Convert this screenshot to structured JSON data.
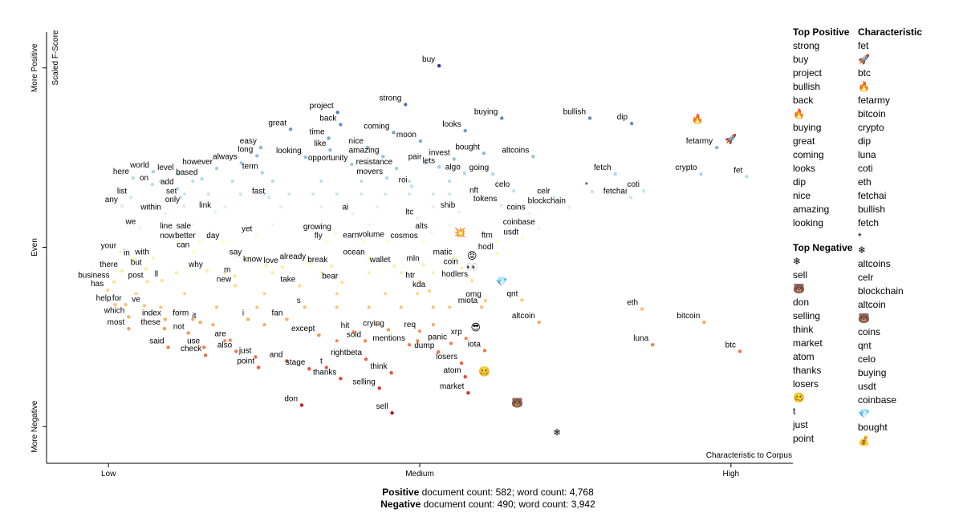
{
  "chart_data": {
    "type": "scatter",
    "ylabel": "Scaled F-Score",
    "xlabel": "Characteristic to Corpus",
    "xlim": [
      0,
      1
    ],
    "ylim": [
      -0.1,
      1.1
    ],
    "xticks": [
      {
        "value": 0.083,
        "label": "Low"
      },
      {
        "value": 0.5,
        "label": "Medium"
      },
      {
        "value": 0.917,
        "label": "High"
      }
    ],
    "yticks": [
      {
        "value": 1,
        "label": "More Positive"
      },
      {
        "value": 0.5,
        "label": "Even"
      },
      {
        "value": 0,
        "label": "More Negative"
      }
    ],
    "color_scale": [
      "#a50026",
      "#d73027",
      "#f46d43",
      "#fdae61",
      "#fee090",
      "#ffffbf",
      "#e0f3f8",
      "#abd9e9",
      "#74add1",
      "#4575b4",
      "#313695"
    ],
    "points": {
      "labels": [
        "buy",
        "strong",
        "project",
        "back",
        "great",
        "time",
        "coming",
        "moon",
        "looks",
        "buying",
        "bullish",
        "dip",
        "🔥",
        "fetarmy",
        "🚀",
        "easy",
        "long",
        "like",
        "nice",
        "amazing",
        "looking",
        "opportunity",
        "invest",
        "bought",
        "altcoins",
        "pair",
        "lets",
        "resistance",
        "term",
        "however",
        "always",
        "world",
        "level",
        "based",
        "here",
        "movers",
        "roi",
        "algo",
        "going",
        "on",
        "add",
        "celo",
        "fetch",
        "crypto",
        "fet",
        "coti",
        "fetchai",
        "*",
        "list",
        "set",
        "fast",
        "nft",
        "celr",
        "blockchain",
        "any",
        "only",
        "tokens",
        "link",
        "within",
        "ai",
        "ltc",
        "shib",
        "coins",
        "we",
        "coinbase",
        "line",
        "sale",
        "yet",
        "growing",
        "alts",
        "💥",
        "ftm",
        "usdt",
        "now",
        "better",
        "day",
        "fly",
        "earn",
        "volume",
        "cosmos",
        "can",
        "your",
        "hodl",
        "in",
        "with",
        "say",
        "ocean",
        "matic",
        "😡",
        "already",
        "love",
        "know",
        "break",
        "wallet",
        "mln",
        "coin",
        "👀",
        "but",
        "why",
        "there",
        "m",
        "post",
        "ll",
        "bear",
        "htr",
        "hodlers",
        "business",
        "new",
        "take",
        "💎",
        "has",
        "kda",
        "omg",
        "qnt",
        "help",
        "for",
        "ve",
        "s",
        "miota",
        "eth",
        "which",
        "index",
        "form",
        "it",
        "i",
        "fan",
        "bitcoin",
        "altcoin",
        "most",
        "these",
        "not",
        "😎",
        "except",
        "hit",
        "crying",
        "req",
        "sold",
        "xrp",
        "are",
        "mentions",
        "panic",
        "luna",
        "said",
        "use",
        "also",
        "check",
        "dump",
        "iota",
        "btc",
        "just",
        "rightbeta",
        "and",
        "point",
        "losers",
        "stage",
        "t",
        "think",
        "🥴",
        "thanks",
        "atom",
        "selling",
        "market",
        "don",
        "🐻",
        "sell",
        "❄"
      ],
      "x": [
        0.526,
        0.481,
        0.39,
        0.394,
        0.327,
        0.378,
        0.465,
        0.501,
        0.561,
        0.61,
        0.728,
        0.784,
        0.872,
        0.898,
        0.917,
        0.287,
        0.282,
        0.38,
        0.43,
        0.451,
        0.347,
        0.409,
        0.546,
        0.586,
        0.652,
        0.508,
        0.526,
        0.469,
        0.289,
        0.228,
        0.261,
        0.143,
        0.176,
        0.208,
        0.116,
        0.456,
        0.489,
        0.56,
        0.598,
        0.142,
        0.176,
        0.626,
        0.762,
        0.877,
        0.938,
        0.8,
        0.783,
        0.731,
        0.113,
        0.18,
        0.298,
        0.584,
        0.68,
        0.701,
        0.101,
        0.184,
        0.609,
        0.226,
        0.159,
        0.41,
        0.497,
        0.553,
        0.647,
        0.125,
        0.66,
        0.174,
        0.199,
        0.281,
        0.387,
        0.516,
        0.554,
        0.603,
        0.638,
        0.177,
        0.205,
        0.237,
        0.375,
        0.424,
        0.458,
        0.503,
        0.197,
        0.099,
        0.604,
        0.117,
        0.143,
        0.267,
        0.432,
        0.549,
        0.57,
        0.353,
        0.316,
        0.294,
        0.382,
        0.466,
        0.505,
        0.557,
        0.57,
        0.133,
        0.215,
        0.101,
        0.252,
        0.135,
        0.155,
        0.396,
        0.499,
        0.57,
        0.09,
        0.253,
        0.339,
        0.61,
        0.082,
        0.513,
        0.588,
        0.637,
        0.092,
        0.106,
        0.131,
        0.346,
        0.583,
        0.798,
        0.11,
        0.159,
        0.196,
        0.206,
        0.27,
        0.322,
        0.881,
        0.66,
        0.11,
        0.158,
        0.19,
        0.575,
        0.365,
        0.411,
        0.458,
        0.5,
        0.427,
        0.562,
        0.246,
        0.486,
        0.542,
        0.812,
        0.163,
        0.211,
        0.254,
        0.213,
        0.525,
        0.587,
        0.929,
        0.28,
        0.428,
        0.322,
        0.284,
        0.556,
        0.352,
        0.375,
        0.462,
        0.587,
        0.394,
        0.561,
        0.446,
        0.565,
        0.342,
        0.631,
        0.463,
        0.684
      ],
      "y": [
        1.006,
        0.898,
        0.876,
        0.842,
        0.829,
        0.804,
        0.82,
        0.796,
        0.825,
        0.86,
        0.86,
        0.845,
        0.858,
        0.778,
        0.802,
        0.778,
        0.755,
        0.771,
        0.778,
        0.753,
        0.751,
        0.731,
        0.746,
        0.762,
        0.753,
        0.735,
        0.724,
        0.72,
        0.708,
        0.72,
        0.735,
        0.711,
        0.704,
        0.691,
        0.693,
        0.693,
        0.67,
        0.706,
        0.704,
        0.675,
        0.664,
        0.657,
        0.704,
        0.704,
        0.697,
        0.657,
        0.639,
        0.655,
        0.639,
        0.639,
        0.639,
        0.641,
        0.639,
        0.612,
        0.615,
        0.615,
        0.617,
        0.599,
        0.594,
        0.594,
        0.581,
        0.599,
        0.594,
        0.554,
        0.552,
        0.541,
        0.541,
        0.534,
        0.539,
        0.541,
        0.541,
        0.516,
        0.525,
        0.514,
        0.514,
        0.514,
        0.514,
        0.516,
        0.518,
        0.514,
        0.489,
        0.487,
        0.483,
        0.467,
        0.469,
        0.469,
        0.469,
        0.469,
        0.476,
        0.456,
        0.445,
        0.449,
        0.447,
        0.447,
        0.451,
        0.442,
        0.445,
        0.44,
        0.434,
        0.434,
        0.42,
        0.404,
        0.407,
        0.402,
        0.404,
        0.407,
        0.404,
        0.393,
        0.393,
        0.404,
        0.38,
        0.378,
        0.351,
        0.353,
        0.34,
        0.34,
        0.337,
        0.333,
        0.333,
        0.328,
        0.306,
        0.299,
        0.299,
        0.291,
        0.299,
        0.299,
        0.291,
        0.291,
        0.273,
        0.273,
        0.261,
        0.277,
        0.255,
        0.264,
        0.27,
        0.266,
        0.239,
        0.246,
        0.241,
        0.228,
        0.232,
        0.228,
        0.221,
        0.221,
        0.21,
        0.199,
        0.208,
        0.212,
        0.21,
        0.194,
        0.188,
        0.183,
        0.165,
        0.177,
        0.161,
        0.165,
        0.15,
        0.154,
        0.134,
        0.139,
        0.107,
        0.094,
        0.06,
        0.067,
        0.038,
        -0.016
      ]
    },
    "dots": {
      "x": [
        0.153,
        0.196,
        0.249,
        0.303,
        0.368,
        0.422,
        0.486,
        0.54,
        0.185,
        0.217,
        0.26,
        0.292,
        0.325,
        0.357,
        0.389,
        0.422,
        0.454,
        0.486,
        0.518,
        0.54,
        0.142,
        0.239,
        0.314,
        0.368,
        0.443,
        0.518,
        0.196,
        0.303,
        0.432,
        0.54,
        0.174,
        0.239,
        0.303,
        0.368,
        0.432,
        0.475,
        0.518,
        0.12,
        0.185,
        0.292,
        0.389,
        0.454,
        0.497,
        0.153,
        0.228,
        0.282,
        0.389,
        0.432,
        0.475,
        0.518,
        0.54,
        0.223,
        0.292,
        0.443,
        0.518,
        0.239,
        0.389,
        0.497
      ],
      "y": [
        0.684,
        0.684,
        0.684,
        0.684,
        0.684,
        0.684,
        0.684,
        0.684,
        0.648,
        0.648,
        0.648,
        0.648,
        0.648,
        0.648,
        0.648,
        0.648,
        0.648,
        0.648,
        0.648,
        0.648,
        0.612,
        0.612,
        0.612,
        0.612,
        0.612,
        0.612,
        0.563,
        0.563,
        0.563,
        0.563,
        0.429,
        0.429,
        0.429,
        0.429,
        0.429,
        0.429,
        0.429,
        0.371,
        0.371,
        0.371,
        0.371,
        0.371,
        0.371,
        0.333,
        0.333,
        0.333,
        0.333,
        0.333,
        0.333,
        0.333,
        0.333,
        0.284,
        0.284,
        0.284,
        0.284,
        0.239,
        0.239,
        0.239
      ]
    },
    "footer": [
      {
        "label": "Positive",
        "text": "document count: 582; word count: 4,768"
      },
      {
        "label": "Negative",
        "text": "document count: 490; word count: 3,942"
      }
    ],
    "lists": {
      "top_positive": {
        "title": "Top Positive",
        "terms": [
          "strong",
          "buy",
          "project",
          "bullish",
          "back",
          "🔥",
          "buying",
          "great",
          "coming",
          "looks",
          "dip",
          "nice",
          "amazing",
          "looking"
        ]
      },
      "top_negative": {
        "title": "Top Negative",
        "terms": [
          "❄",
          "sell",
          "🐻",
          "don",
          "selling",
          "think",
          "market",
          "atom",
          "thanks",
          "losers",
          "🥴",
          "t",
          "just",
          "point"
        ]
      },
      "characteristic": {
        "title": "Characteristic",
        "terms": [
          "fet",
          "🚀",
          "btc",
          "🔥",
          "fetarmy",
          "bitcoin",
          "crypto",
          "dip",
          "luna",
          "coti",
          "eth",
          "fetchai",
          "bullish",
          "fetch",
          "*",
          "❄",
          "altcoins",
          "celr",
          "blockchain",
          "altcoin",
          "🐻",
          "coins",
          "qnt",
          "celo",
          "buying",
          "usdt",
          "coinbase",
          "💎",
          "bought",
          "💰"
        ]
      }
    }
  }
}
